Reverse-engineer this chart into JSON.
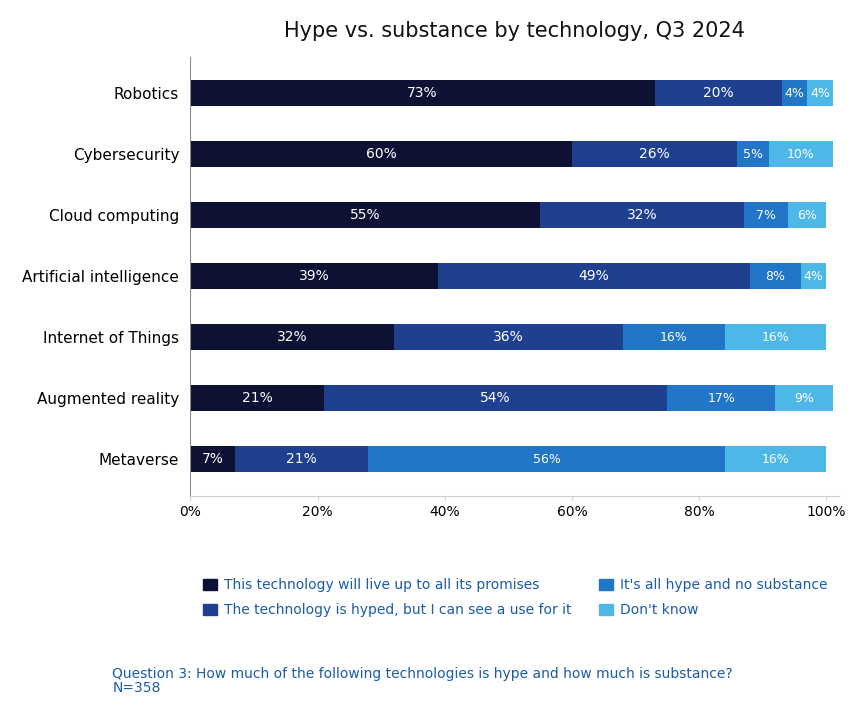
{
  "title": "Hype vs. substance by technology, Q3 2024",
  "categories": [
    "Robotics",
    "Cybersecurity",
    "Cloud computing",
    "Artificial intelligence",
    "Internet of Things",
    "Augmented reality",
    "Metaverse"
  ],
  "series": {
    "live_up": [
      73,
      60,
      55,
      39,
      32,
      21,
      7
    ],
    "hyped_use": [
      20,
      26,
      32,
      49,
      36,
      54,
      21
    ],
    "all_hype": [
      4,
      5,
      7,
      8,
      16,
      17,
      56
    ],
    "dont_know": [
      4,
      10,
      6,
      4,
      16,
      9,
      16
    ]
  },
  "colors": {
    "live_up": "#0d1235",
    "hyped_use": "#1f3f8f",
    "all_hype": "#2176c7",
    "dont_know": "#4db8e8"
  },
  "legend_labels": [
    "This technology will live up to all its promises",
    "The technology is hyped, but I can see a use for it",
    "It's all hype and no substance",
    "Don't know"
  ],
  "legend_text_color": "#1a5ca8",
  "xlabel_ticks": [
    0,
    20,
    40,
    60,
    80,
    100
  ],
  "xlabel_tick_labels": [
    "0%",
    "20%",
    "40%",
    "60%",
    "80%",
    "100%"
  ],
  "footnote_line1": "Question 3: How much of the following technologies is hype and how much is substance?",
  "footnote_line2": "N=358",
  "bar_height": 0.42,
  "text_color_white": "#ffffff",
  "background_color": "#ffffff",
  "title_fontsize": 15,
  "label_fontsize": 11,
  "tick_fontsize": 10,
  "bar_label_fontsize": 10,
  "legend_fontsize": 10,
  "footnote_fontsize": 10,
  "footnote_color": "#1a5ca8"
}
